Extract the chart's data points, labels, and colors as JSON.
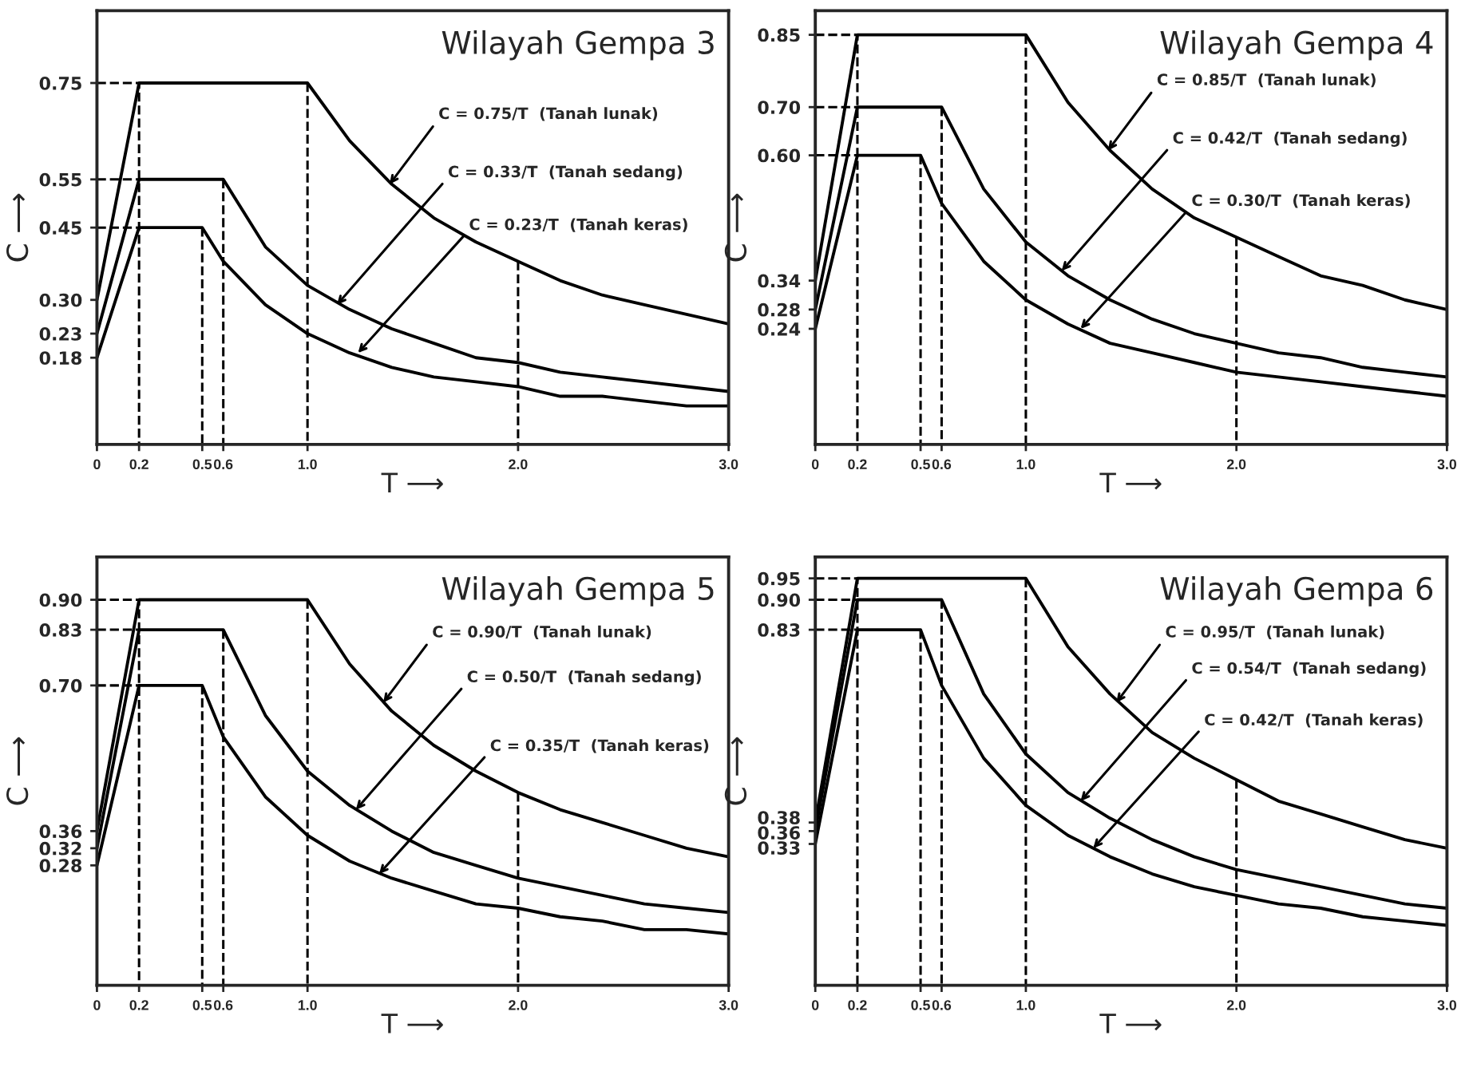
{
  "chart_data": [
    {
      "type": "line",
      "title": "Wilayah Gempa 3",
      "xlabel": "T ⟶",
      "ylabel": "C ⟶",
      "xlim": [
        0,
        3
      ],
      "ylim": [
        0,
        0.9
      ],
      "xticks": [
        {
          "value": 0,
          "label": "0"
        },
        {
          "value": 0.2,
          "label": "0.2"
        },
        {
          "value": 0.5,
          "label": "0.5"
        },
        {
          "value": 0.6,
          "label": "0.6"
        },
        {
          "value": 1.0,
          "label": "1.0"
        },
        {
          "value": 2.0,
          "label": "2.0"
        },
        {
          "value": 3.0,
          "label": "3.0"
        }
      ],
      "yticks": [
        {
          "value": 0.18,
          "label": "0.18"
        },
        {
          "value": 0.23,
          "label": "0.23"
        },
        {
          "value": 0.3,
          "label": "0.30"
        },
        {
          "value": 0.45,
          "label": "0.45"
        },
        {
          "value": 0.55,
          "label": "0.55"
        },
        {
          "value": 0.75,
          "label": "0.75"
        }
      ],
      "series": [
        {
          "color": "#000000",
          "line_style": "solid",
          "x": [
            0,
            0.2,
            1.0,
            1.2,
            1.4,
            1.6,
            1.8,
            2.0,
            2.2,
            2.4,
            2.6,
            2.8,
            3.0
          ],
          "values": [
            0.3,
            0.75,
            0.75,
            0.63,
            0.54,
            0.47,
            0.42,
            0.38,
            0.34,
            0.31,
            0.29,
            0.27,
            0.25
          ]
        },
        {
          "color": "#000000",
          "line_style": "solid",
          "x": [
            0,
            0.2,
            0.6,
            0.8,
            1.0,
            1.2,
            1.4,
            1.6,
            1.8,
            2.0,
            2.2,
            2.4,
            2.6,
            2.8,
            3.0
          ],
          "values": [
            0.23,
            0.55,
            0.55,
            0.41,
            0.33,
            0.28,
            0.24,
            0.21,
            0.18,
            0.17,
            0.15,
            0.14,
            0.13,
            0.12,
            0.11
          ]
        },
        {
          "color": "#000000",
          "line_style": "solid",
          "x": [
            0,
            0.2,
            0.5,
            0.6,
            0.8,
            1.0,
            1.2,
            1.4,
            1.6,
            1.8,
            2.0,
            2.2,
            2.4,
            2.6,
            2.8,
            3.0
          ],
          "values": [
            0.18,
            0.45,
            0.45,
            0.38,
            0.29,
            0.23,
            0.19,
            0.16,
            0.14,
            0.13,
            0.12,
            0.1,
            0.1,
            0.09,
            0.08,
            0.08
          ]
        },
        {
          "color": "#000000",
          "line_style": "dashed",
          "x": [
            0,
            0.2,
            0.2
          ],
          "values": [
            0.75,
            0.75,
            0
          ]
        },
        {
          "color": "#000000",
          "line_style": "dashed",
          "x": [
            0,
            0.2
          ],
          "values": [
            0.55,
            0.55
          ]
        },
        {
          "color": "#000000",
          "line_style": "dashed",
          "x": [
            0,
            0.2
          ],
          "values": [
            0.45,
            0.45
          ]
        },
        {
          "color": "#000000",
          "line_style": "dashed",
          "x": [
            0.5,
            0.5
          ],
          "values": [
            0.45,
            0
          ]
        },
        {
          "color": "#000000",
          "line_style": "dashed",
          "x": [
            0.6,
            0.6
          ],
          "values": [
            0.55,
            0
          ]
        },
        {
          "color": "#000000",
          "line_style": "dashed",
          "x": [
            1.0,
            1.0
          ],
          "values": [
            0.75,
            0
          ]
        },
        {
          "color": "#000000",
          "line_style": "dashed",
          "x": [
            2.0,
            2.0
          ],
          "values": [
            0.38,
            0
          ]
        }
      ],
      "annotations": [
        {
          "text": "C = 0.75/T  (Tanah lunak)",
          "x": 1.39,
          "y": 0.54
        },
        {
          "text": "C = 0.33/T  (Tanah sedang)",
          "x": 1.14,
          "y": 0.29
        },
        {
          "text": "C = 0.23/T  (Tanah keras)",
          "x": 1.24,
          "y": 0.19
        }
      ]
    },
    {
      "type": "line",
      "title": "Wilayah Gempa 4",
      "xlabel": "T ⟶",
      "ylabel": "C ⟶",
      "xlim": [
        0,
        3
      ],
      "ylim": [
        0,
        0.9
      ],
      "xticks": [
        {
          "value": 0,
          "label": "0"
        },
        {
          "value": 0.2,
          "label": "0.2"
        },
        {
          "value": 0.5,
          "label": "0.5"
        },
        {
          "value": 0.6,
          "label": "0.6"
        },
        {
          "value": 1.0,
          "label": "1.0"
        },
        {
          "value": 2.0,
          "label": "2.0"
        },
        {
          "value": 3.0,
          "label": "3.0"
        }
      ],
      "yticks": [
        {
          "value": 0.24,
          "label": "0.24"
        },
        {
          "value": 0.28,
          "label": "0.28"
        },
        {
          "value": 0.34,
          "label": "0.34"
        },
        {
          "value": 0.6,
          "label": "0.60"
        },
        {
          "value": 0.7,
          "label": "0.70"
        },
        {
          "value": 0.85,
          "label": "0.85"
        }
      ],
      "series": [
        {
          "color": "#000000",
          "line_style": "solid",
          "x": [
            0,
            0.2,
            1.0,
            1.2,
            1.4,
            1.6,
            1.8,
            2.0,
            2.2,
            2.4,
            2.6,
            2.8,
            3.0
          ],
          "values": [
            0.34,
            0.85,
            0.85,
            0.71,
            0.61,
            0.53,
            0.47,
            0.43,
            0.39,
            0.35,
            0.33,
            0.3,
            0.28
          ]
        },
        {
          "color": "#000000",
          "line_style": "solid",
          "x": [
            0,
            0.2,
            0.6,
            0.8,
            1.0,
            1.2,
            1.4,
            1.6,
            1.8,
            2.0,
            2.2,
            2.4,
            2.6,
            2.8,
            3.0
          ],
          "values": [
            0.28,
            0.7,
            0.7,
            0.53,
            0.42,
            0.35,
            0.3,
            0.26,
            0.23,
            0.21,
            0.19,
            0.18,
            0.16,
            0.15,
            0.14
          ]
        },
        {
          "color": "#000000",
          "line_style": "solid",
          "x": [
            0,
            0.2,
            0.5,
            0.6,
            0.8,
            1.0,
            1.2,
            1.4,
            1.6,
            1.8,
            2.0,
            2.2,
            2.4,
            2.6,
            2.8,
            3.0
          ],
          "values": [
            0.24,
            0.6,
            0.6,
            0.5,
            0.38,
            0.3,
            0.25,
            0.21,
            0.19,
            0.17,
            0.15,
            0.14,
            0.13,
            0.12,
            0.11,
            0.1
          ]
        },
        {
          "color": "#000000",
          "line_style": "dashed",
          "x": [
            0,
            0.2,
            0.2
          ],
          "values": [
            0.85,
            0.85,
            0
          ]
        },
        {
          "color": "#000000",
          "line_style": "dashed",
          "x": [
            0,
            0.2
          ],
          "values": [
            0.7,
            0.7
          ]
        },
        {
          "color": "#000000",
          "line_style": "dashed",
          "x": [
            0,
            0.2
          ],
          "values": [
            0.6,
            0.6
          ]
        },
        {
          "color": "#000000",
          "line_style": "dashed",
          "x": [
            0.5,
            0.5
          ],
          "values": [
            0.6,
            0
          ]
        },
        {
          "color": "#000000",
          "line_style": "dashed",
          "x": [
            0.6,
            0.6
          ],
          "values": [
            0.7,
            0
          ]
        },
        {
          "color": "#000000",
          "line_style": "dashed",
          "x": [
            1.0,
            1.0
          ],
          "values": [
            0.85,
            0
          ]
        },
        {
          "color": "#000000",
          "line_style": "dashed",
          "x": [
            2.0,
            2.0
          ],
          "values": [
            0.43,
            0
          ]
        }
      ],
      "annotations": [
        {
          "text": "C = 0.85/T  (Tanah lunak)",
          "x": 1.39,
          "y": 0.61
        },
        {
          "text": "C = 0.42/T  (Tanah sedang)",
          "x": 1.17,
          "y": 0.36
        },
        {
          "text": "C = 0.30/T  (Tanah keras)",
          "x": 1.26,
          "y": 0.24
        }
      ]
    },
    {
      "type": "line",
      "title": "Wilayah Gempa 5",
      "xlabel": "T ⟶",
      "ylabel": "C ⟶",
      "xlim": [
        0,
        3
      ],
      "ylim": [
        0,
        1.0
      ],
      "xticks": [
        {
          "value": 0,
          "label": "0"
        },
        {
          "value": 0.2,
          "label": "0.2"
        },
        {
          "value": 0.5,
          "label": "0.5"
        },
        {
          "value": 0.6,
          "label": "0.6"
        },
        {
          "value": 1.0,
          "label": "1.0"
        },
        {
          "value": 2.0,
          "label": "2.0"
        },
        {
          "value": 3.0,
          "label": "3.0"
        }
      ],
      "yticks": [
        {
          "value": 0.28,
          "label": "0.28"
        },
        {
          "value": 0.32,
          "label": "0.32"
        },
        {
          "value": 0.36,
          "label": "0.36"
        },
        {
          "value": 0.7,
          "label": "0.70"
        },
        {
          "value": 0.83,
          "label": "0.83"
        },
        {
          "value": 0.9,
          "label": "0.90"
        }
      ],
      "series": [
        {
          "color": "#000000",
          "line_style": "solid",
          "x": [
            0,
            0.2,
            1.0,
            1.2,
            1.4,
            1.6,
            1.8,
            2.0,
            2.2,
            2.4,
            2.6,
            2.8,
            3.0
          ],
          "values": [
            0.36,
            0.9,
            0.9,
            0.75,
            0.64,
            0.56,
            0.5,
            0.45,
            0.41,
            0.38,
            0.35,
            0.32,
            0.3
          ]
        },
        {
          "color": "#000000",
          "line_style": "solid",
          "x": [
            0,
            0.2,
            0.6,
            0.8,
            1.0,
            1.2,
            1.4,
            1.6,
            1.8,
            2.0,
            2.2,
            2.4,
            2.6,
            2.8,
            3.0
          ],
          "values": [
            0.32,
            0.83,
            0.83,
            0.63,
            0.5,
            0.42,
            0.36,
            0.31,
            0.28,
            0.25,
            0.23,
            0.21,
            0.19,
            0.18,
            0.17
          ]
        },
        {
          "color": "#000000",
          "line_style": "solid",
          "x": [
            0,
            0.2,
            0.5,
            0.6,
            0.8,
            1.0,
            1.2,
            1.4,
            1.6,
            1.8,
            2.0,
            2.2,
            2.4,
            2.6,
            2.8,
            3.0
          ],
          "values": [
            0.28,
            0.7,
            0.7,
            0.58,
            0.44,
            0.35,
            0.29,
            0.25,
            0.22,
            0.19,
            0.18,
            0.16,
            0.15,
            0.13,
            0.13,
            0.12
          ]
        },
        {
          "color": "#000000",
          "line_style": "dashed",
          "x": [
            0,
            0.2,
            0.2
          ],
          "values": [
            0.9,
            0.9,
            0
          ]
        },
        {
          "color": "#000000",
          "line_style": "dashed",
          "x": [
            0,
            0.2
          ],
          "values": [
            0.83,
            0.83
          ]
        },
        {
          "color": "#000000",
          "line_style": "dashed",
          "x": [
            0,
            0.2
          ],
          "values": [
            0.7,
            0.7
          ]
        },
        {
          "color": "#000000",
          "line_style": "dashed",
          "x": [
            0.5,
            0.5
          ],
          "values": [
            0.7,
            0
          ]
        },
        {
          "color": "#000000",
          "line_style": "dashed",
          "x": [
            0.6,
            0.6
          ],
          "values": [
            0.83,
            0
          ]
        },
        {
          "color": "#000000",
          "line_style": "dashed",
          "x": [
            1.0,
            1.0
          ],
          "values": [
            0.9,
            0
          ]
        },
        {
          "color": "#000000",
          "line_style": "dashed",
          "x": [
            2.0,
            2.0
          ],
          "values": [
            0.45,
            0
          ]
        }
      ],
      "annotations": [
        {
          "text": "C = 0.90/T  (Tanah lunak)",
          "x": 1.36,
          "y": 0.66
        },
        {
          "text": "C = 0.50/T  (Tanah sedang)",
          "x": 1.23,
          "y": 0.41
        },
        {
          "text": "C = 0.35/T  (Tanah keras)",
          "x": 1.34,
          "y": 0.26
        }
      ]
    },
    {
      "type": "line",
      "title": "Wilayah Gempa 6",
      "xlabel": "T ⟶",
      "ylabel": "C ⟶",
      "xlim": [
        0,
        3
      ],
      "ylim": [
        0,
        1.0
      ],
      "xticks": [
        {
          "value": 0,
          "label": "0"
        },
        {
          "value": 0.2,
          "label": "0.2"
        },
        {
          "value": 0.5,
          "label": "0.5"
        },
        {
          "value": 0.6,
          "label": "0.6"
        },
        {
          "value": 1.0,
          "label": "1.0"
        },
        {
          "value": 2.0,
          "label": "2.0"
        },
        {
          "value": 3.0,
          "label": "3.0"
        }
      ],
      "yticks": [
        {
          "value": 0.33,
          "label": "0.33"
        },
        {
          "value": 0.36,
          "label": "0.36"
        },
        {
          "value": 0.38,
          "label": "0.38"
        },
        {
          "value": 0.83,
          "label": "0.83"
        },
        {
          "value": 0.9,
          "label": "0.90"
        },
        {
          "value": 0.95,
          "label": "0.95"
        }
      ],
      "series": [
        {
          "color": "#000000",
          "line_style": "solid",
          "x": [
            0,
            0.2,
            1.0,
            1.2,
            1.4,
            1.6,
            1.8,
            2.0,
            2.2,
            2.4,
            2.6,
            2.8,
            3.0
          ],
          "values": [
            0.38,
            0.95,
            0.95,
            0.79,
            0.68,
            0.59,
            0.53,
            0.48,
            0.43,
            0.4,
            0.37,
            0.34,
            0.32
          ]
        },
        {
          "color": "#000000",
          "line_style": "solid",
          "x": [
            0,
            0.2,
            0.6,
            0.8,
            1.0,
            1.2,
            1.4,
            1.6,
            1.8,
            2.0,
            2.2,
            2.4,
            2.6,
            2.8,
            3.0
          ],
          "values": [
            0.36,
            0.9,
            0.9,
            0.68,
            0.54,
            0.45,
            0.39,
            0.34,
            0.3,
            0.27,
            0.25,
            0.23,
            0.21,
            0.19,
            0.18
          ]
        },
        {
          "color": "#000000",
          "line_style": "solid",
          "x": [
            0,
            0.2,
            0.5,
            0.6,
            0.8,
            1.0,
            1.2,
            1.4,
            1.6,
            1.8,
            2.0,
            2.2,
            2.4,
            2.6,
            2.8,
            3.0
          ],
          "values": [
            0.33,
            0.83,
            0.83,
            0.7,
            0.53,
            0.42,
            0.35,
            0.3,
            0.26,
            0.23,
            0.21,
            0.19,
            0.18,
            0.16,
            0.15,
            0.14
          ]
        },
        {
          "color": "#000000",
          "line_style": "dashed",
          "x": [
            0,
            0.2,
            0.2
          ],
          "values": [
            0.95,
            0.95,
            0
          ]
        },
        {
          "color": "#000000",
          "line_style": "dashed",
          "x": [
            0,
            0.2
          ],
          "values": [
            0.9,
            0.9
          ]
        },
        {
          "color": "#000000",
          "line_style": "dashed",
          "x": [
            0,
            0.2
          ],
          "values": [
            0.83,
            0.83
          ]
        },
        {
          "color": "#000000",
          "line_style": "dashed",
          "x": [
            0.5,
            0.5
          ],
          "values": [
            0.83,
            0
          ]
        },
        {
          "color": "#000000",
          "line_style": "dashed",
          "x": [
            0.6,
            0.6
          ],
          "values": [
            0.9,
            0
          ]
        },
        {
          "color": "#000000",
          "line_style": "dashed",
          "x": [
            1.0,
            1.0
          ],
          "values": [
            0.95,
            0
          ]
        },
        {
          "color": "#000000",
          "line_style": "dashed",
          "x": [
            2.0,
            2.0
          ],
          "values": [
            0.48,
            0
          ]
        }
      ],
      "annotations": [
        {
          "text": "C = 0.95/T  (Tanah lunak)",
          "x": 1.43,
          "y": 0.66
        },
        {
          "text": "C = 0.54/T  (Tanah sedang)",
          "x": 1.26,
          "y": 0.43
        },
        {
          "text": "C = 0.42/T  (Tanah keras)",
          "x": 1.32,
          "y": 0.32
        }
      ]
    }
  ]
}
